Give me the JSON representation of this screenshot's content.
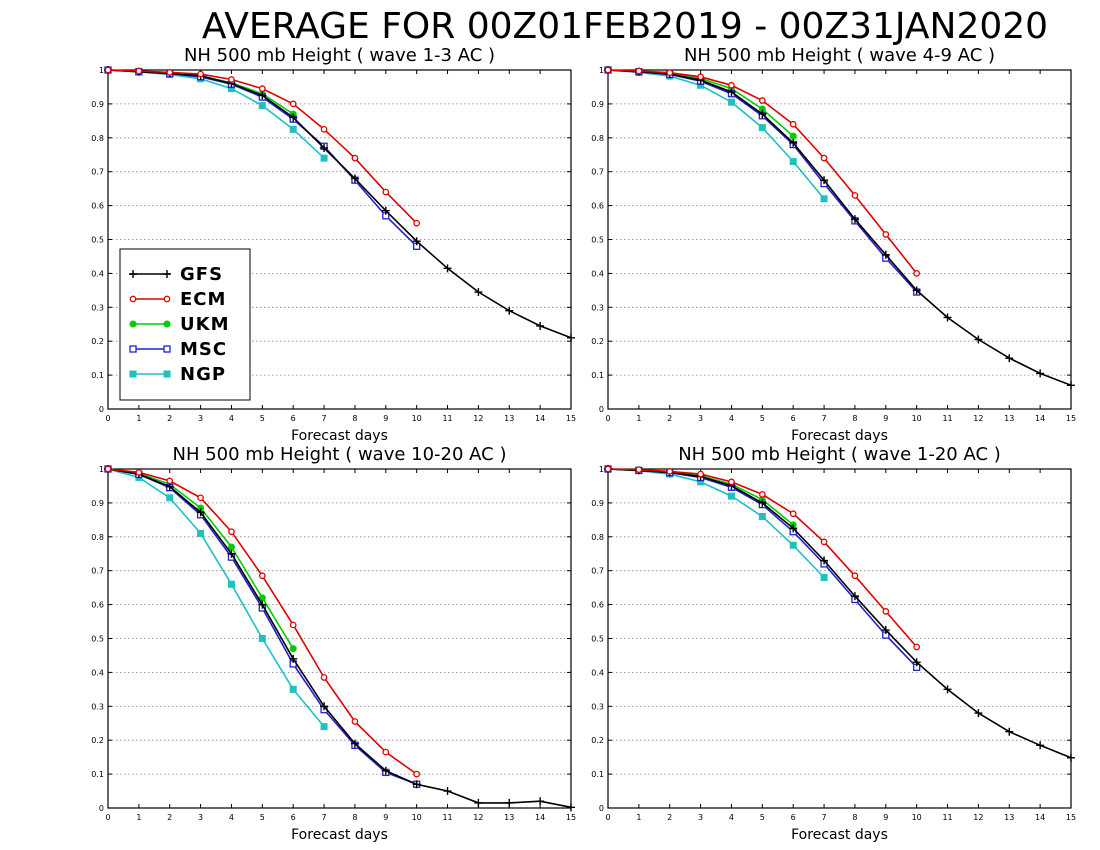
{
  "figure_title": "AVERAGE FOR 00Z01FEB2019 - 00Z31JAN2020",
  "colors": {
    "GFS": "#000000",
    "ECM": "#e00000",
    "UKM": "#00cc00",
    "MSC": "#2020d0",
    "NGP": "#20c0c0"
  },
  "legend": {
    "entries": [
      "GFS",
      "ECM",
      "UKM",
      "MSC",
      "NGP"
    ]
  },
  "chart_data": [
    {
      "type": "line",
      "title": "NH 500 mb Height ( wave 1-3 AC )",
      "xlabel": "Forecast days",
      "ylabel": "",
      "xlim": [
        0,
        15
      ],
      "ylim": [
        0,
        1
      ],
      "xticks": [
        "0",
        "1",
        "2",
        "3",
        "4",
        "5",
        "6",
        "7",
        "8",
        "9",
        "10",
        "11",
        "12",
        "13",
        "14",
        "15"
      ],
      "yticks": [
        "0",
        "0.1",
        "0.2",
        "0.3",
        "0.4",
        "0.5",
        "0.6",
        "0.7",
        "0.8",
        "0.9",
        "1"
      ],
      "grid": true,
      "legend_position": "lower-left",
      "series": [
        {
          "name": "GFS",
          "x": [
            0,
            1,
            2,
            3,
            4,
            5,
            6,
            7,
            8,
            9,
            10,
            11,
            12,
            13,
            14,
            15
          ],
          "values": [
            1.0,
            0.995,
            0.99,
            0.983,
            0.96,
            0.925,
            0.86,
            0.77,
            0.68,
            0.585,
            0.495,
            0.415,
            0.345,
            0.29,
            0.245,
            0.21
          ]
        },
        {
          "name": "ECM",
          "x": [
            0,
            1,
            2,
            3,
            4,
            5,
            6,
            7,
            8,
            9,
            10
          ],
          "values": [
            1.0,
            0.997,
            0.993,
            0.988,
            0.972,
            0.945,
            0.9,
            0.825,
            0.74,
            0.64,
            0.548
          ]
        },
        {
          "name": "UKM",
          "x": [
            0,
            1,
            2,
            3,
            4,
            5,
            6
          ],
          "values": [
            1.0,
            0.996,
            0.991,
            0.983,
            0.962,
            0.93,
            0.87
          ]
        },
        {
          "name": "MSC",
          "x": [
            0,
            1,
            2,
            3,
            4,
            5,
            6,
            7,
            8,
            9,
            10
          ],
          "values": [
            1.0,
            0.995,
            0.989,
            0.98,
            0.958,
            0.92,
            0.855,
            0.775,
            0.675,
            0.57,
            0.48
          ]
        },
        {
          "name": "NGP",
          "x": [
            0,
            1,
            2,
            3,
            4,
            5,
            6,
            7
          ],
          "values": [
            1.0,
            0.994,
            0.987,
            0.974,
            0.945,
            0.895,
            0.825,
            0.74
          ]
        }
      ]
    },
    {
      "type": "line",
      "title": "NH 500 mb Height ( wave 4-9 AC )",
      "xlabel": "Forecast days",
      "ylabel": "",
      "xlim": [
        0,
        15
      ],
      "ylim": [
        0,
        1
      ],
      "xticks": [
        "0",
        "1",
        "2",
        "3",
        "4",
        "5",
        "6",
        "7",
        "8",
        "9",
        "10",
        "11",
        "12",
        "13",
        "14",
        "15"
      ],
      "yticks": [
        "0",
        "0.1",
        "0.2",
        "0.3",
        "0.4",
        "0.5",
        "0.6",
        "0.7",
        "0.8",
        "0.9",
        "1"
      ],
      "grid": true,
      "series": [
        {
          "name": "GFS",
          "x": [
            0,
            1,
            2,
            3,
            4,
            5,
            6,
            7,
            8,
            9,
            10,
            11,
            12,
            13,
            14,
            15
          ],
          "values": [
            1.0,
            0.995,
            0.988,
            0.97,
            0.935,
            0.87,
            0.785,
            0.675,
            0.56,
            0.455,
            0.35,
            0.27,
            0.205,
            0.15,
            0.105,
            0.07
          ]
        },
        {
          "name": "ECM",
          "x": [
            0,
            1,
            2,
            3,
            4,
            5,
            6,
            7,
            8,
            9,
            10
          ],
          "values": [
            1.0,
            0.997,
            0.992,
            0.98,
            0.955,
            0.91,
            0.84,
            0.74,
            0.63,
            0.515,
            0.4
          ]
        },
        {
          "name": "UKM",
          "x": [
            0,
            1,
            2,
            3,
            4,
            5,
            6
          ],
          "values": [
            1.0,
            0.996,
            0.99,
            0.975,
            0.945,
            0.885,
            0.805
          ]
        },
        {
          "name": "MSC",
          "x": [
            0,
            1,
            2,
            3,
            4,
            5,
            6,
            7,
            8,
            9,
            10
          ],
          "values": [
            1.0,
            0.995,
            0.987,
            0.967,
            0.93,
            0.865,
            0.78,
            0.665,
            0.555,
            0.445,
            0.345
          ]
        },
        {
          "name": "NGP",
          "x": [
            0,
            1,
            2,
            3,
            4,
            5,
            6,
            7
          ],
          "values": [
            1.0,
            0.993,
            0.982,
            0.955,
            0.905,
            0.83,
            0.73,
            0.62
          ]
        }
      ]
    },
    {
      "type": "line",
      "title": "NH 500 mb Height ( wave 10-20 AC )",
      "xlabel": "Forecast days",
      "ylabel": "",
      "xlim": [
        0,
        15
      ],
      "ylim": [
        0,
        1
      ],
      "xticks": [
        "0",
        "1",
        "2",
        "3",
        "4",
        "5",
        "6",
        "7",
        "8",
        "9",
        "10",
        "11",
        "12",
        "13",
        "14",
        "15"
      ],
      "yticks": [
        "0",
        "0.1",
        "0.2",
        "0.3",
        "0.4",
        "0.5",
        "0.6",
        "0.7",
        "0.8",
        "0.9",
        "1"
      ],
      "grid": true,
      "series": [
        {
          "name": "GFS",
          "x": [
            0,
            1,
            2,
            3,
            4,
            5,
            6,
            7,
            8,
            9,
            10,
            11,
            12,
            13,
            14,
            15
          ],
          "values": [
            1.0,
            0.985,
            0.948,
            0.872,
            0.75,
            0.6,
            0.44,
            0.3,
            0.19,
            0.11,
            0.07,
            0.05,
            0.015,
            0.015,
            0.02,
            0.002
          ]
        },
        {
          "name": "ECM",
          "x": [
            0,
            1,
            2,
            3,
            4,
            5,
            6,
            7,
            8,
            9,
            10
          ],
          "values": [
            1.0,
            0.99,
            0.965,
            0.915,
            0.815,
            0.685,
            0.54,
            0.385,
            0.255,
            0.165,
            0.1
          ]
        },
        {
          "name": "UKM",
          "x": [
            0,
            1,
            2,
            3,
            4,
            5,
            6
          ],
          "values": [
            1.0,
            0.987,
            0.955,
            0.885,
            0.77,
            0.62,
            0.47
          ]
        },
        {
          "name": "MSC",
          "x": [
            0,
            1,
            2,
            3,
            4,
            5,
            6,
            7,
            8,
            9,
            10
          ],
          "values": [
            1.0,
            0.984,
            0.945,
            0.865,
            0.74,
            0.59,
            0.425,
            0.29,
            0.185,
            0.105,
            0.07
          ]
        },
        {
          "name": "NGP",
          "x": [
            0,
            1,
            2,
            3,
            4,
            5,
            6,
            7
          ],
          "values": [
            1.0,
            0.975,
            0.915,
            0.81,
            0.66,
            0.5,
            0.35,
            0.24
          ]
        }
      ]
    },
    {
      "type": "line",
      "title": "NH 500 mb Height ( wave 1-20 AC )",
      "xlabel": "Forecast days",
      "ylabel": "",
      "xlim": [
        0,
        15
      ],
      "ylim": [
        0,
        1
      ],
      "xticks": [
        "0",
        "1",
        "2",
        "3",
        "4",
        "5",
        "6",
        "7",
        "8",
        "9",
        "10",
        "11",
        "12",
        "13",
        "14",
        "15"
      ],
      "yticks": [
        "0",
        "0.1",
        "0.2",
        "0.3",
        "0.4",
        "0.5",
        "0.6",
        "0.7",
        "0.8",
        "0.9",
        "1"
      ],
      "grid": true,
      "series": [
        {
          "name": "GFS",
          "x": [
            0,
            1,
            2,
            3,
            4,
            5,
            6,
            7,
            8,
            9,
            10,
            11,
            12,
            13,
            14,
            15
          ],
          "values": [
            1.0,
            0.996,
            0.99,
            0.978,
            0.95,
            0.9,
            0.825,
            0.73,
            0.625,
            0.525,
            0.43,
            0.35,
            0.28,
            0.225,
            0.185,
            0.148
          ]
        },
        {
          "name": "ECM",
          "x": [
            0,
            1,
            2,
            3,
            4,
            5,
            6,
            7,
            8,
            9,
            10
          ],
          "values": [
            1.0,
            0.998,
            0.993,
            0.985,
            0.962,
            0.925,
            0.868,
            0.785,
            0.685,
            0.58,
            0.475
          ]
        },
        {
          "name": "UKM",
          "x": [
            0,
            1,
            2,
            3,
            4,
            5,
            6
          ],
          "values": [
            1.0,
            0.997,
            0.992,
            0.98,
            0.955,
            0.91,
            0.835
          ]
        },
        {
          "name": "MSC",
          "x": [
            0,
            1,
            2,
            3,
            4,
            5,
            6,
            7,
            8,
            9,
            10
          ],
          "values": [
            1.0,
            0.996,
            0.989,
            0.975,
            0.946,
            0.895,
            0.815,
            0.72,
            0.615,
            0.51,
            0.415
          ]
        },
        {
          "name": "NGP",
          "x": [
            0,
            1,
            2,
            3,
            4,
            5,
            6,
            7
          ],
          "values": [
            1.0,
            0.995,
            0.985,
            0.962,
            0.92,
            0.86,
            0.775,
            0.68
          ]
        }
      ]
    }
  ]
}
